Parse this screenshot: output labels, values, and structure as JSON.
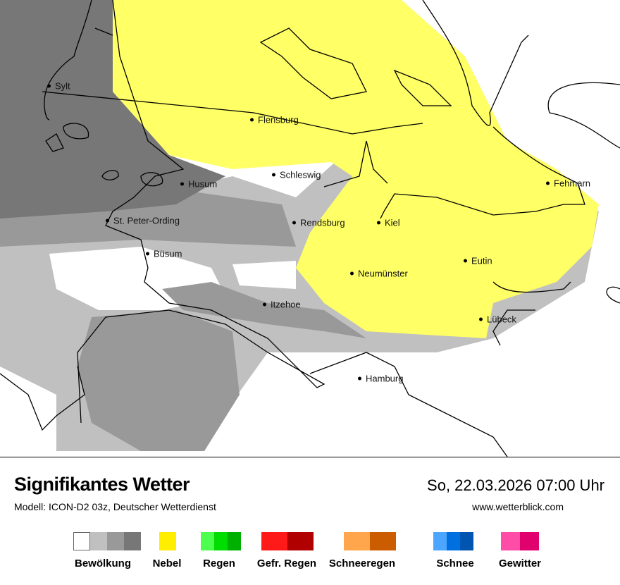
{
  "header": {
    "title": "Signifikantes Wetter",
    "model": "Modell: ICON-D2 03z, Deutscher Wetterdienst",
    "datetime": "So, 22.03.2026 07:00 Uhr",
    "website": "www.wetterblick.com"
  },
  "map": {
    "cities": [
      "Sylt",
      "Flensburg",
      "Schleswig",
      "Husum",
      "St. Peter-Ording",
      "Rendsburg",
      "Kiel",
      "Fehmarn",
      "Büsum",
      "Neumünster",
      "Eutin",
      "Itzehoe",
      "Lübeck",
      "Hamburg"
    ]
  },
  "legend": [
    {
      "label": "Bewölkung",
      "colors": [
        "#ffffff",
        "#c0c0c0",
        "#999999",
        "#777777"
      ]
    },
    {
      "label": "Nebel",
      "colors": [
        "#ffee00"
      ]
    },
    {
      "label": "Regen",
      "colors": [
        "#4cff4c",
        "#00dd00",
        "#00b000"
      ]
    },
    {
      "label": "Gefr. Regen",
      "colors": [
        "#ff1a1a",
        "#b00000"
      ]
    },
    {
      "label": "Schneeregen",
      "colors": [
        "#ffa64c",
        "#cc5c00"
      ]
    },
    {
      "label": "Schnee",
      "colors": [
        "#4ca6ff",
        "#0070e0",
        "#0055b0"
      ]
    },
    {
      "label": "Gewitter",
      "colors": [
        "#ff4ca6",
        "#e0006e"
      ]
    }
  ],
  "map_colors": {
    "fog": "#ffff66",
    "cloud_light": "#c0c0c0",
    "cloud_medium": "#999999",
    "cloud_dark": "#777777"
  }
}
